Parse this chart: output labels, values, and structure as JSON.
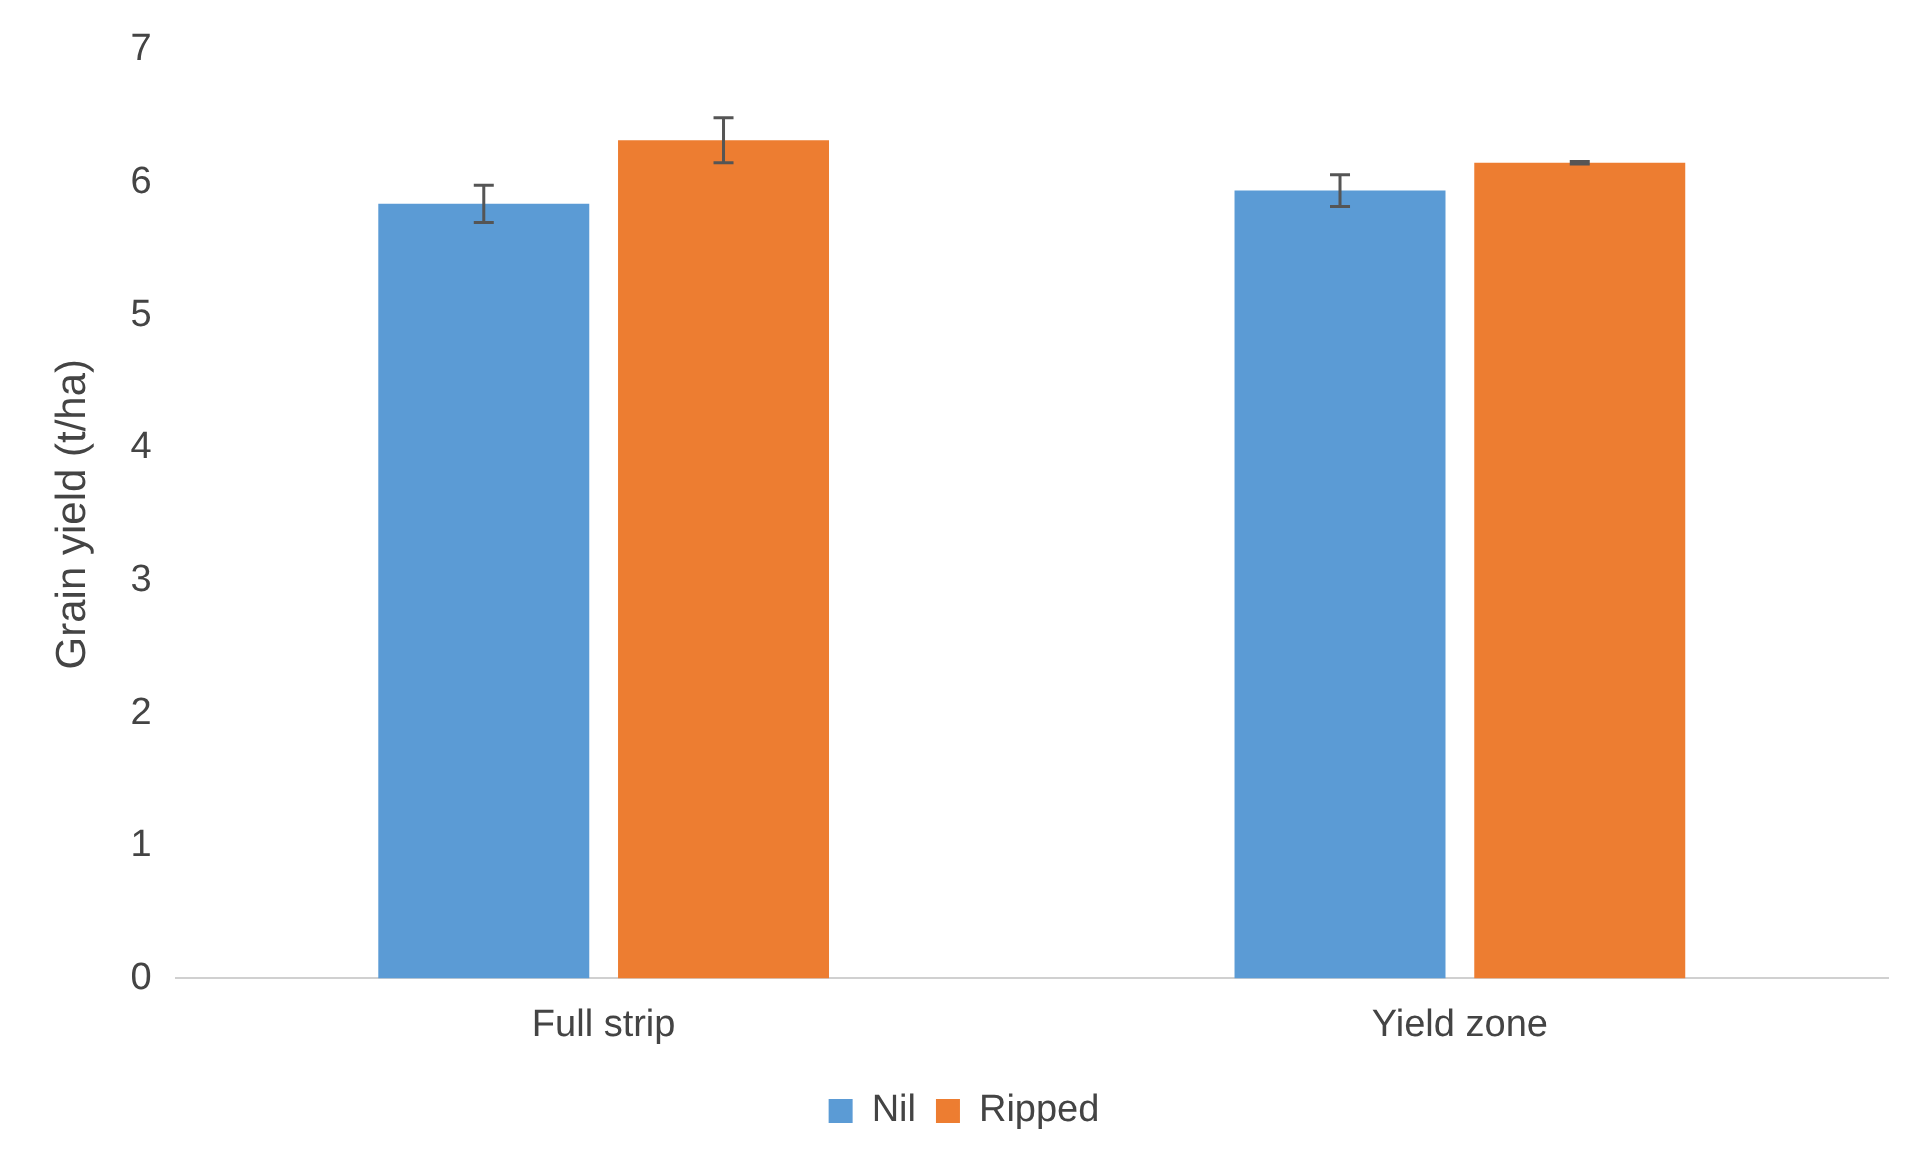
{
  "chart_data": {
    "type": "bar",
    "ylabel": "Grain yield (t/ha)",
    "categories": [
      "Full strip",
      "Yield zone"
    ],
    "series": [
      {
        "name": "Nil",
        "color": "#5b9bd5",
        "values": [
          5.84,
          5.94
        ],
        "errors": [
          0.14,
          0.12
        ]
      },
      {
        "name": "Ripped",
        "color": "#ed7d31",
        "values": [
          6.32,
          6.15
        ],
        "errors": [
          0.17,
          0.01
        ]
      }
    ],
    "ylim": [
      0,
      7
    ],
    "yticks": [
      0,
      1,
      2,
      3,
      4,
      5,
      6,
      7
    ],
    "grid": false,
    "legend": "bottom"
  }
}
